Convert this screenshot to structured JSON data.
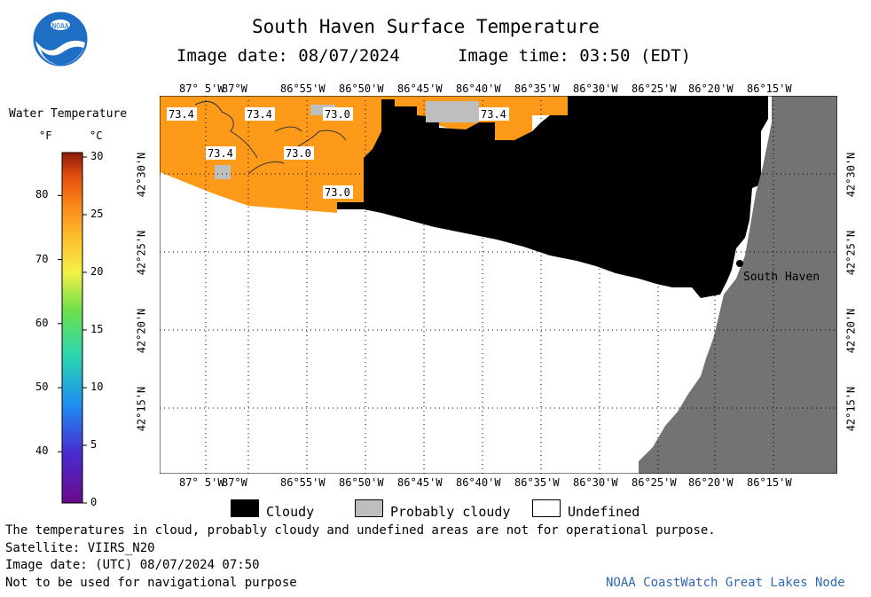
{
  "header": {
    "title": "South Haven Surface Temperature",
    "image_date": "Image date: 08/07/2024",
    "image_time": "Image time: 03:50 (EDT)"
  },
  "logo": {
    "text": "NOAA",
    "icon": "noaa-logo"
  },
  "colorbar": {
    "title": "Water Temperature",
    "unit_f": "°F",
    "unit_c": "°C",
    "f_ticks": [
      "80",
      "70",
      "60",
      "50",
      "40"
    ],
    "c_ticks": [
      "30",
      "25",
      "20",
      "15",
      "10",
      "5",
      "0"
    ]
  },
  "map": {
    "lon_labels": [
      "87° 5'W",
      "87°W",
      "86°55'W",
      "86°50'W",
      "86°45'W",
      "86°40'W",
      "86°35'W",
      "86°30'W",
      "86°25'W",
      "86°20'W",
      "86°15'W"
    ],
    "lat_labels": [
      "42°30'N",
      "42°25'N",
      "42°20'N",
      "42°15'N"
    ],
    "temperature_labels": [
      "73.4",
      "73.4",
      "73.0",
      "73.4",
      "73.4",
      "73.0",
      "73.0"
    ],
    "city_label": "South Haven",
    "colors": {
      "warm": "#fd9a1a",
      "cloudy": "#000000",
      "probably_cloudy": "#bebebe",
      "land": "#737373",
      "undefined": "#ffffff"
    }
  },
  "legend": {
    "cloudy": "Cloudy",
    "probably_cloudy": "Probably cloudy",
    "undefined": "Undefined"
  },
  "footer": {
    "disclaimer": "The temperatures in cloud, probably cloudy and undefined areas are not for operational purpose.",
    "satellite": "Satellite: VIIRS_N20",
    "utc_date": "Image date: (UTC) 08/07/2024  07:50",
    "nav_warning": "Not to be used for navigational purpose",
    "credit": "NOAA CoastWatch Great Lakes Node"
  }
}
